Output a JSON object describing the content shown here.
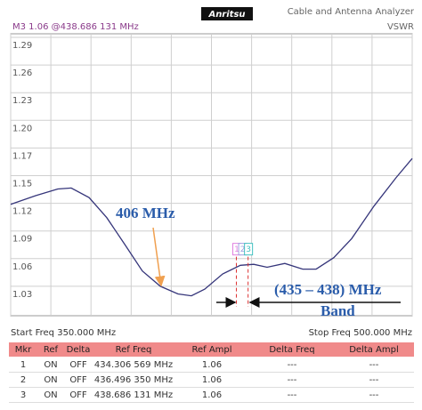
{
  "header": {
    "marker_readout": "M3 1.06 @438.686 131 MHz",
    "logo": "Anritsu",
    "instrument": "Cable and Antenna Analyzer",
    "mode": "VSWR"
  },
  "chart_data": {
    "type": "line",
    "x": [
      350,
      359.3,
      367.6,
      372.6,
      379.3,
      385.9,
      392.6,
      399.2,
      405.9,
      412.5,
      417.5,
      422.5,
      429.2,
      435.8,
      440.8,
      445.8,
      452.4,
      459.1,
      464.1,
      470.7,
      477.4,
      485.7,
      494,
      500
    ],
    "values": [
      1.115,
      1.124,
      1.131,
      1.132,
      1.122,
      1.101,
      1.073,
      1.045,
      1.029,
      1.021,
      1.019,
      1.026,
      1.042,
      1.051,
      1.052,
      1.049,
      1.053,
      1.047,
      1.047,
      1.059,
      1.079,
      1.113,
      1.143,
      1.163
    ],
    "color": "#35357a",
    "xlim": [
      350,
      500
    ],
    "xticks": [
      350,
      365,
      380,
      395,
      410,
      425,
      440,
      455,
      470,
      485,
      500
    ],
    "ylim": [
      1.0,
      1.29
    ],
    "yticks": [
      1.29,
      {
        "value": 1.261,
        "label": "1.26"
      },
      {
        "value": 1.232,
        "label": "1.23"
      },
      {
        "value": 1.203,
        "label": "1.20"
      },
      {
        "value": 1.174,
        "label": "1.17"
      },
      {
        "value": 1.145,
        "label": "1.15"
      },
      {
        "value": 1.116,
        "label": "1.12"
      },
      {
        "value": 1.087,
        "label": "1.09"
      },
      {
        "value": 1.058,
        "label": "1.06"
      },
      {
        "value": 1.029,
        "label": "1.03"
      }
    ],
    "grid": true,
    "markers": [
      {
        "label": "1",
        "x": 434.306569,
        "value": 1.06,
        "color": "#e080e0"
      },
      {
        "label": "2",
        "x": 436.49635,
        "value": 1.06,
        "color": "#a0a0e0"
      },
      {
        "label": "3",
        "x": 438.686131,
        "value": 1.06,
        "color": "#40c0c0"
      }
    ],
    "annotations": [
      "406 MHz",
      "(435 – 438) MHz",
      "Band"
    ],
    "start_freq": "Start Freq 350.000 MHz",
    "stop_freq": "Stop Freq 500.000 MHz"
  },
  "table": {
    "header": [
      "Mkr",
      "Ref",
      "Delta",
      "Ref Freq",
      "Ref Ampl",
      "Delta Freq",
      "Delta Ampl"
    ],
    "rows": [
      [
        "1",
        "ON",
        "OFF",
        "434.306 569 MHz",
        "1.06",
        "---",
        "---"
      ],
      [
        "2",
        "ON",
        "OFF",
        "436.496 350 MHz",
        "1.06",
        "---",
        "---"
      ],
      [
        "3",
        "ON",
        "OFF",
        "438.686 131 MHz",
        "1.06",
        "---",
        "---"
      ]
    ]
  }
}
